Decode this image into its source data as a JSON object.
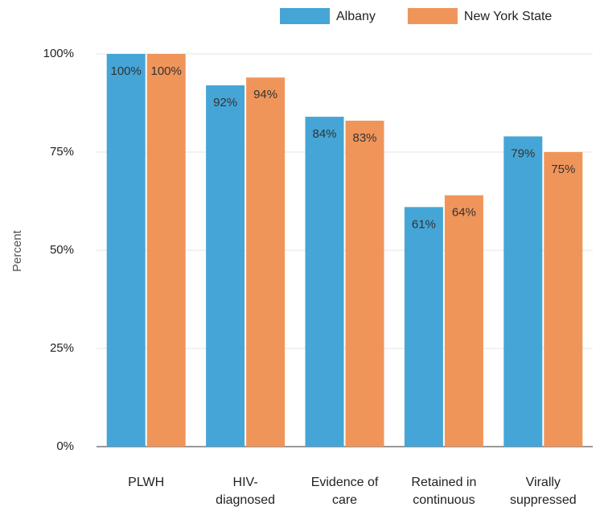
{
  "chart_data": {
    "type": "bar",
    "y_label": "Percent",
    "categories": [
      [
        "PLWH"
      ],
      [
        "HIV-",
        "diagnosed"
      ],
      [
        "Evidence of",
        "care"
      ],
      [
        "Retained in",
        "continuous"
      ],
      [
        "Virally",
        "suppressed"
      ]
    ],
    "series": [
      {
        "name": "Albany",
        "color": "#45a5d6",
        "values": [
          100,
          92,
          84,
          61,
          79
        ],
        "value_labels": [
          "100%",
          "92%",
          "84%",
          "61%",
          "79%"
        ]
      },
      {
        "name": "New York State",
        "color": "#f0955a",
        "values": [
          100,
          94,
          83,
          64,
          75
        ],
        "value_labels": [
          "100%",
          "94%",
          "83%",
          "64%",
          "75%"
        ]
      }
    ],
    "ylim": [
      0,
      100
    ],
    "yticks": [
      {
        "value": 0,
        "label": "0%"
      },
      {
        "value": 25,
        "label": "25%"
      },
      {
        "value": 50,
        "label": "50%"
      },
      {
        "value": 75,
        "label": "75%"
      },
      {
        "value": 100,
        "label": "100%"
      }
    ],
    "grid": true,
    "legend": "top"
  }
}
